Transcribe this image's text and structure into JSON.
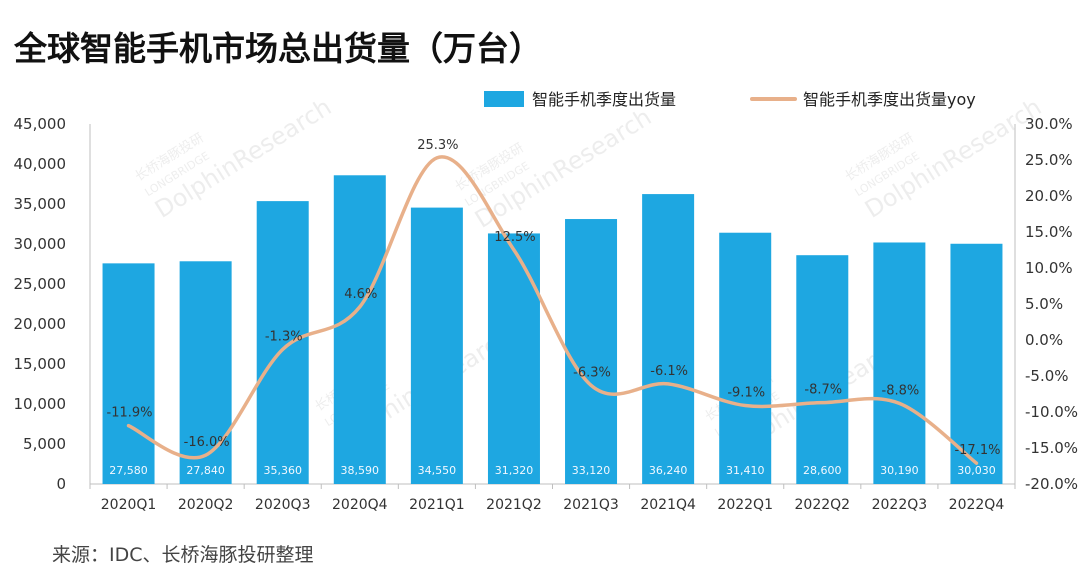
{
  "header": {
    "title": "全球智能手机市场总出货量（万台）"
  },
  "footer": {
    "source": "来源：IDC、长桥海豚投研整理"
  },
  "watermark": {
    "brand_cn": "长桥海豚投研",
    "brand_en": "DolphinResearch",
    "brand_long": "LONGBRIDGE"
  },
  "colors": {
    "bar": "#1ea7e1",
    "line": "#e8b08a"
  },
  "chart_data": {
    "type": "bar",
    "categories": [
      "2020Q1",
      "2020Q2",
      "2020Q3",
      "2020Q4",
      "2021Q1",
      "2021Q2",
      "2021Q3",
      "2021Q4",
      "2022Q1",
      "2022Q2",
      "2022Q3",
      "2022Q4"
    ],
    "series": [
      {
        "name": "智能手机季度出货量",
        "type": "bar",
        "axis": "left",
        "values": [
          27580,
          27840,
          35360,
          38590,
          34550,
          31320,
          33120,
          36240,
          31410,
          28600,
          30190,
          30030
        ],
        "labels": [
          "27,580",
          "27,840",
          "35,360",
          "38,590",
          "34,550",
          "31,320",
          "33,120",
          "36,240",
          "31,410",
          "28,600",
          "30,190",
          "30,030"
        ]
      },
      {
        "name": "智能手机季度出货量yoy",
        "type": "line",
        "axis": "right",
        "values": [
          -11.9,
          -16.0,
          -1.3,
          4.6,
          25.3,
          12.5,
          -6.3,
          -6.1,
          -9.1,
          -8.7,
          -8.8,
          -17.1
        ],
        "labels": [
          "-11.9%",
          "-16.0%",
          "-1.3%",
          "4.6%",
          "25.3%",
          "12.5%",
          "-6.3%",
          "-6.1%",
          "-9.1%",
          "-8.7%",
          "-8.8%",
          "-17.1%"
        ]
      }
    ],
    "ylim_left": [
      0,
      45000
    ],
    "yticks_left": [
      "45,000",
      "40,000",
      "35,000",
      "30,000",
      "25,000",
      "20,000",
      "15,000",
      "10,000",
      "5,000",
      "0"
    ],
    "ylim_right": [
      -20,
      30
    ],
    "yticks_right": [
      "30.0%",
      "25.0%",
      "20.0%",
      "15.0%",
      "10.0%",
      "5.0%",
      "0.0%",
      "-5.0%",
      "-10.0%",
      "-15.0%",
      "-20.0%"
    ],
    "legend_position": "top-right",
    "grid": false
  }
}
